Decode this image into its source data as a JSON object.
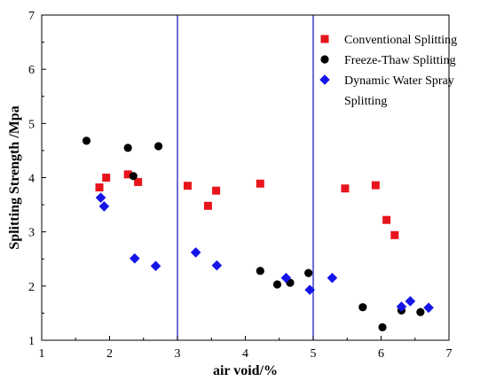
{
  "chart_data": {
    "type": "scatter",
    "xlabel": "air void/%",
    "ylabel": "Splitting Strength /Mpa",
    "xlim": [
      1,
      7
    ],
    "ylim": [
      1,
      7
    ],
    "xticks": [
      1,
      2,
      3,
      4,
      5,
      6,
      7
    ],
    "yticks": [
      1,
      2,
      3,
      4,
      5,
      6,
      7
    ],
    "vertical_lines": [
      3,
      5
    ],
    "vertical_line_color": "#1f1fbf",
    "legend_position": "top-right",
    "series": [
      {
        "name": "Conventional Splitting",
        "marker": "square",
        "color": "#e8141c",
        "points": [
          [
            1.85,
            3.82
          ],
          [
            1.95,
            4.0
          ],
          [
            2.27,
            4.06
          ],
          [
            2.42,
            3.92
          ],
          [
            3.15,
            3.85
          ],
          [
            3.45,
            3.48
          ],
          [
            3.57,
            3.76
          ],
          [
            4.22,
            3.89
          ],
          [
            5.47,
            3.8
          ],
          [
            5.92,
            3.86
          ],
          [
            6.08,
            3.22
          ],
          [
            6.2,
            2.94
          ]
        ]
      },
      {
        "name": "Freeze-Thaw Splitting",
        "marker": "circle",
        "color": "#000000",
        "points": [
          [
            1.66,
            4.68
          ],
          [
            2.27,
            4.55
          ],
          [
            2.35,
            4.03
          ],
          [
            2.72,
            4.58
          ],
          [
            4.22,
            2.28
          ],
          [
            4.47,
            2.03
          ],
          [
            4.66,
            2.06
          ],
          [
            4.93,
            2.24
          ],
          [
            5.73,
            1.61
          ],
          [
            6.02,
            1.24
          ],
          [
            6.3,
            1.55
          ],
          [
            6.58,
            1.52
          ]
        ]
      },
      {
        "name": "Dynamic Water Spray",
        "name_line2": "Splitting",
        "marker": "diamond",
        "color": "#1414e8",
        "points": [
          [
            1.87,
            3.63
          ],
          [
            1.92,
            3.47
          ],
          [
            2.37,
            2.51
          ],
          [
            2.68,
            2.37
          ],
          [
            3.27,
            2.62
          ],
          [
            3.58,
            2.38
          ],
          [
            4.6,
            2.15
          ],
          [
            4.95,
            1.93
          ],
          [
            5.28,
            2.15
          ],
          [
            6.3,
            1.62
          ],
          [
            6.43,
            1.72
          ],
          [
            6.7,
            1.6
          ]
        ]
      }
    ]
  }
}
